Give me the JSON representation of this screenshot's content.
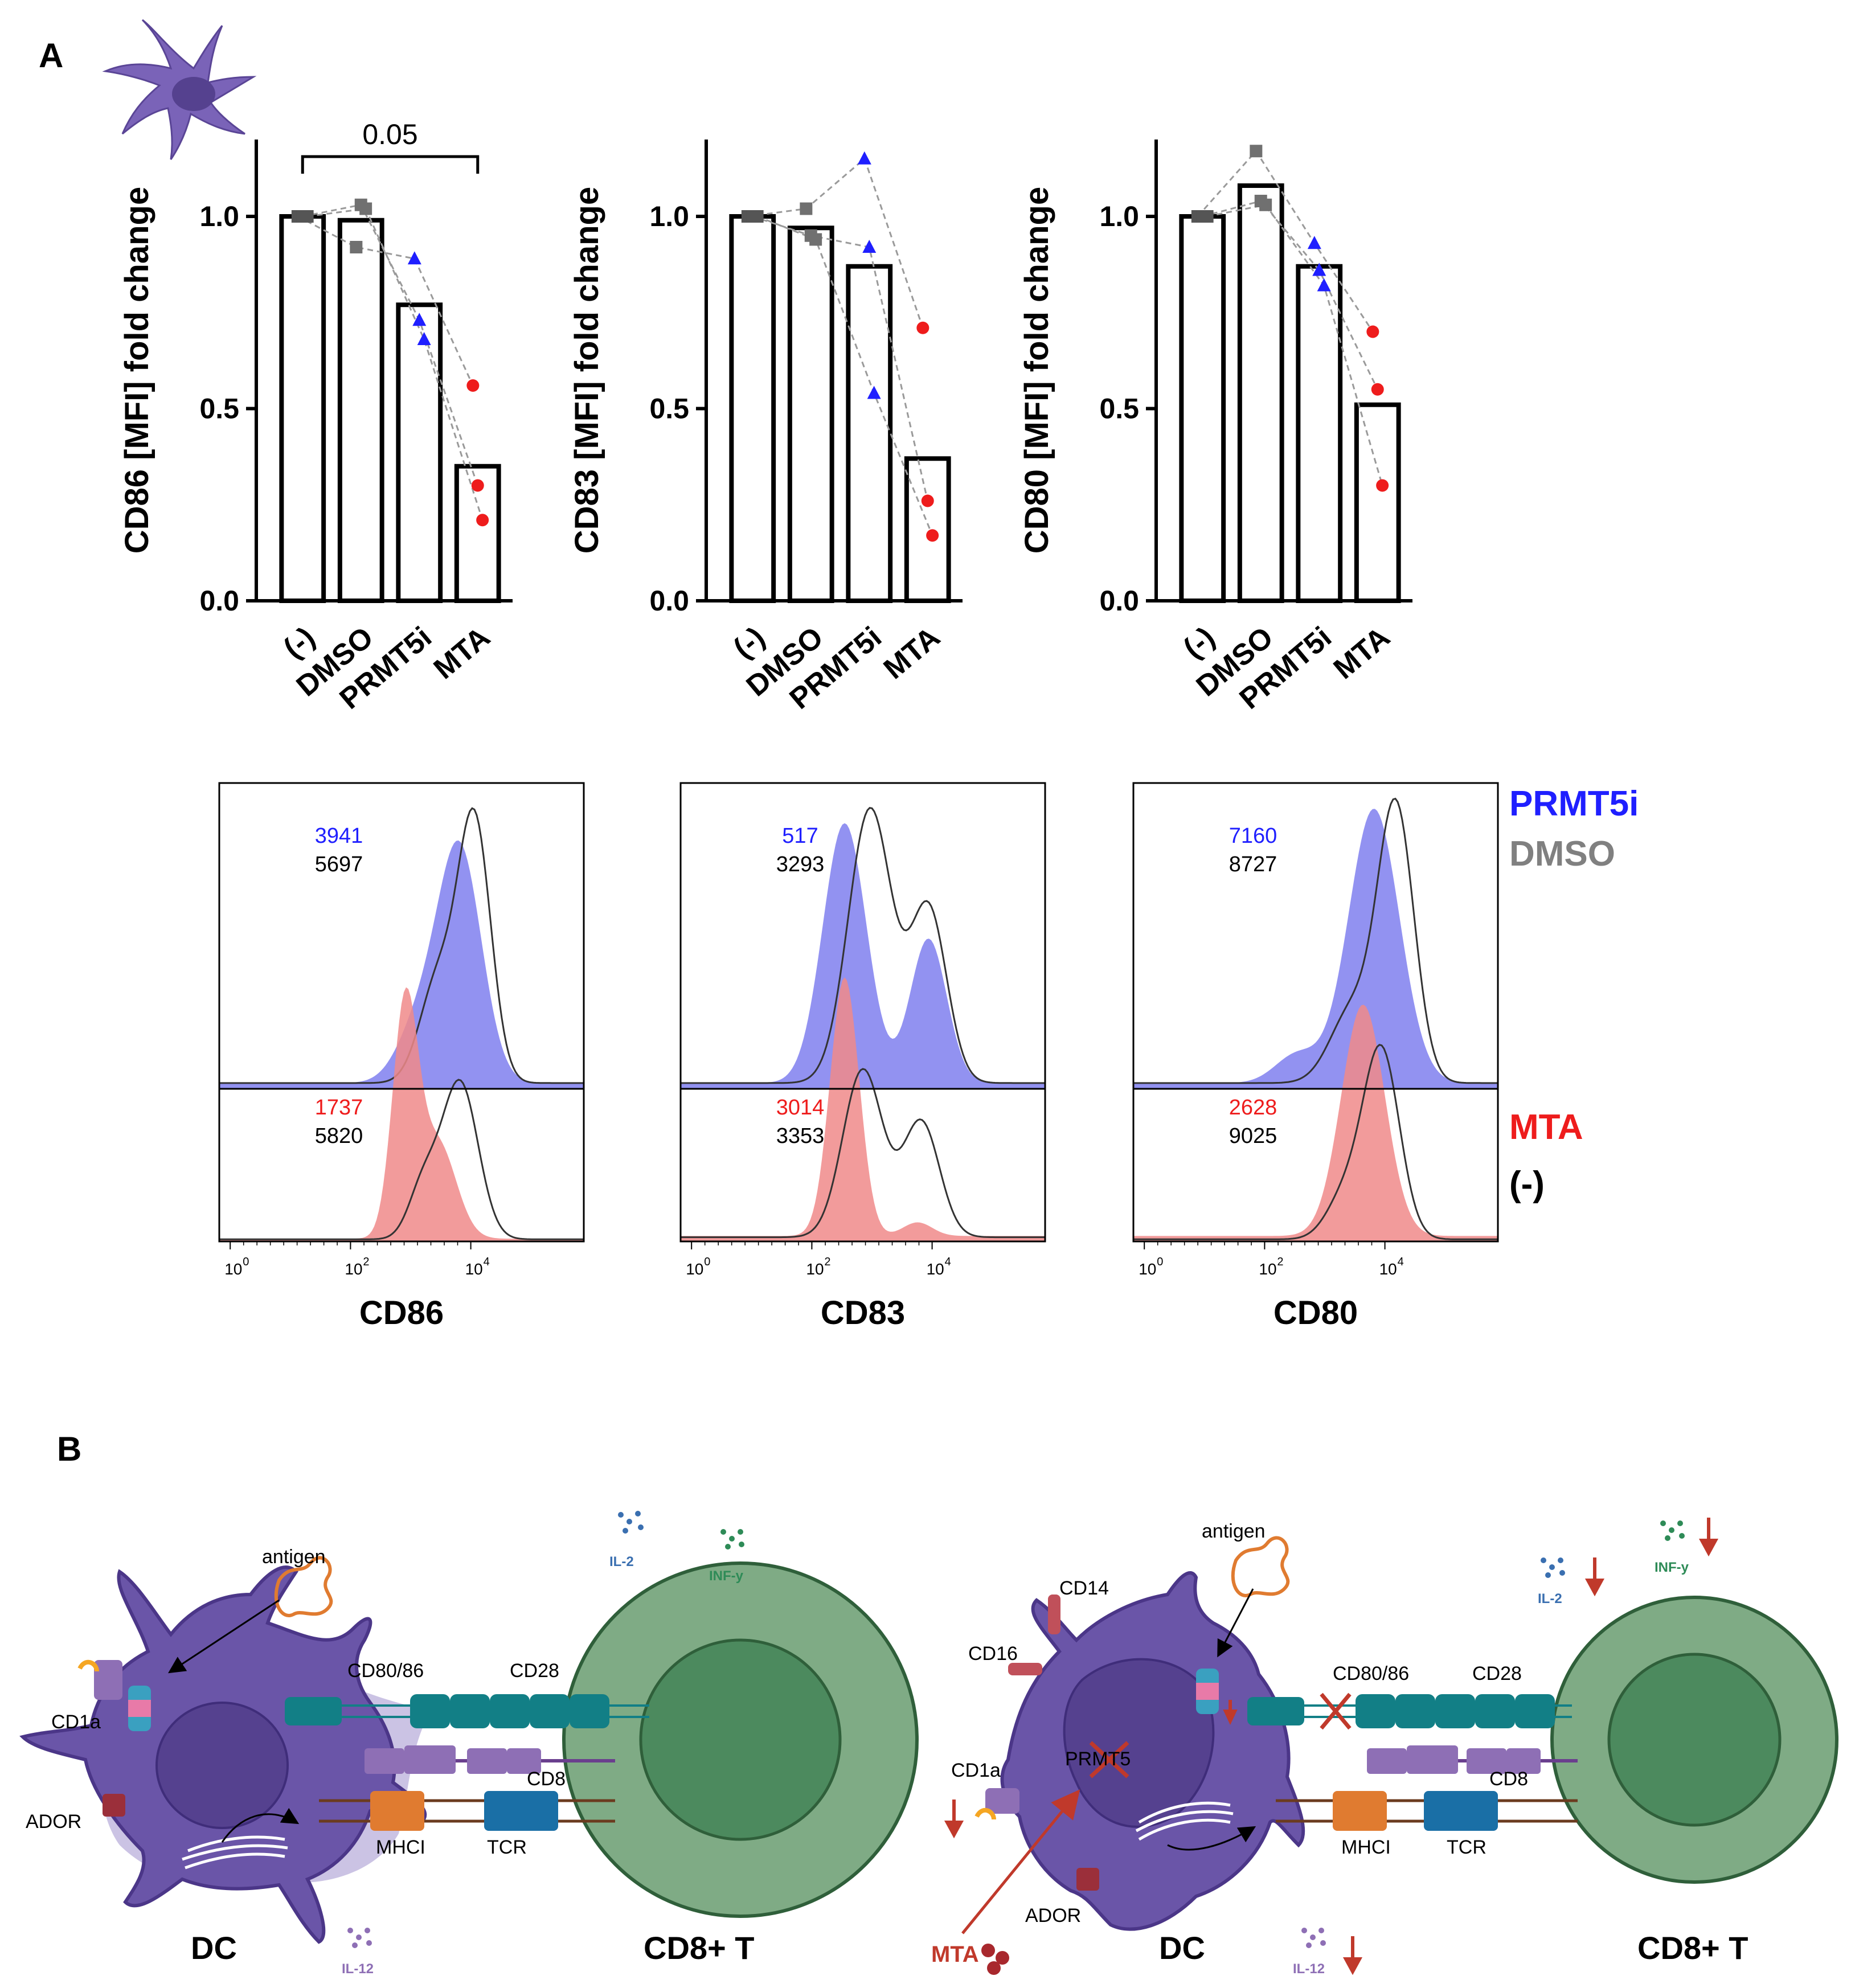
{
  "panels": {
    "a": "A",
    "b": "B"
  },
  "colors": {
    "prmt5i": "#1f1fff",
    "dmso": "#808080",
    "mta": "#ee1c1c",
    "untreated": "#000000",
    "prmt5i_fill": "#8c8cf0",
    "mta_fill": "#f08a8a",
    "dc": "#6a55a8",
    "tcell": "#5e9a6e",
    "receptor_teal": "#127f86",
    "mhc_orange": "#e07b30",
    "tcr_blue": "#1a6fa6",
    "arrow_red": "#c0392b"
  },
  "chart_data": [
    {
      "type": "bar",
      "title": "",
      "ylabel": "CD86 [MFI] fold change",
      "xlabel": "",
      "categories": [
        "(-)",
        "DMSO",
        "PRMT5i",
        "MTA"
      ],
      "values": [
        1.0,
        0.99,
        0.77,
        0.35
      ],
      "ylim": [
        0,
        1.2
      ],
      "yticks": [
        "0.0",
        "0.5",
        "1.0"
      ],
      "points": [
        [
          1.0,
          1.0,
          1.0
        ],
        [
          0.92,
          1.03,
          1.02
        ],
        [
          0.89,
          0.73,
          0.68
        ],
        [
          0.56,
          0.3,
          0.21
        ]
      ],
      "point_markers": [
        "square",
        "square",
        "triangle",
        "circle"
      ],
      "significance": {
        "from": "(-)",
        "to": "MTA",
        "label": "0.05"
      }
    },
    {
      "type": "bar",
      "title": "",
      "ylabel": "CD83 [MFI] fold change",
      "xlabel": "",
      "categories": [
        "(-)",
        "DMSO",
        "PRMT5i",
        "MTA"
      ],
      "values": [
        1.0,
        0.97,
        0.87,
        0.37
      ],
      "ylim": [
        0,
        1.2
      ],
      "yticks": [
        "0.0",
        "0.5",
        "1.0"
      ],
      "points": [
        [
          1.0,
          1.0,
          1.0
        ],
        [
          1.02,
          0.95,
          0.94
        ],
        [
          1.15,
          0.92,
          0.54
        ],
        [
          0.71,
          0.26,
          0.17
        ]
      ],
      "point_markers": [
        "square",
        "square",
        "triangle",
        "circle"
      ]
    },
    {
      "type": "bar",
      "title": "",
      "ylabel": "CD80 [MFI] fold change",
      "xlabel": "",
      "categories": [
        "(-)",
        "DMSO",
        "PRMT5i",
        "MTA"
      ],
      "values": [
        1.0,
        1.08,
        0.87,
        0.51
      ],
      "ylim": [
        0,
        1.2
      ],
      "yticks": [
        "0.0",
        "0.5",
        "1.0"
      ],
      "points": [
        [
          1.0,
          1.0,
          1.0
        ],
        [
          1.17,
          1.04,
          1.03
        ],
        [
          0.93,
          0.86,
          0.82
        ],
        [
          0.7,
          0.55,
          0.3
        ]
      ],
      "point_markers": [
        "square",
        "square",
        "triangle",
        "circle"
      ]
    },
    {
      "type": "area",
      "title": "CD86 histogram",
      "xlabel": "CD86",
      "xticks": [
        "10",
        "10",
        "10"
      ],
      "xtick_exponents": [
        "0",
        "2",
        "4"
      ],
      "mfi_top": {
        "prmt5i": "3941",
        "dmso": "5697"
      },
      "mfi_bottom": {
        "mta": "1737",
        "untreated": "5820"
      }
    },
    {
      "type": "area",
      "title": "CD83 histogram",
      "xlabel": "CD83",
      "xticks": [
        "10",
        "10",
        "10"
      ],
      "xtick_exponents": [
        "0",
        "2",
        "4"
      ],
      "mfi_top": {
        "prmt5i": "517",
        "dmso": "3293"
      },
      "mfi_bottom": {
        "mta": "3014",
        "untreated": "3353"
      }
    },
    {
      "type": "area",
      "title": "CD80 histogram",
      "xlabel": "CD80",
      "xticks": [
        "10",
        "10",
        "10"
      ],
      "xtick_exponents": [
        "0",
        "2",
        "4"
      ],
      "mfi_top": {
        "prmt5i": "7160",
        "dmso": "8727"
      },
      "mfi_bottom": {
        "mta": "2628",
        "untreated": "9025"
      }
    }
  ],
  "legend": {
    "prmt5i": "PRMT5i",
    "dmso": "DMSO",
    "mta": "MTA",
    "untreated": "(-)"
  },
  "diagram": {
    "left": {
      "antigen": "antigen",
      "il2": "IL-2",
      "infy": "INF-y",
      "cd80_86": "CD80/86",
      "cd28": "CD28",
      "cd1a": "CD1a",
      "ador": "ADOR",
      "cd8": "CD8",
      "mhci": "MHCI",
      "tcr": "TCR",
      "il12": "IL-12",
      "dc": "DC",
      "tcell": "CD8+ T"
    },
    "right": {
      "antigen": "antigen",
      "il2": "IL-2",
      "infy": "INF-y",
      "cd14": "CD14",
      "cd16": "CD16",
      "cd80_86": "CD80/86",
      "cd28": "CD28",
      "cd1a": "CD1a",
      "prmt5": "PRMT5",
      "cd8": "CD8",
      "mhci": "MHCI",
      "tcr": "TCR",
      "ador": "ADOR",
      "mta": "MTA",
      "il12": "IL-12",
      "dc": "DC",
      "tcell": "CD8+ T"
    }
  }
}
